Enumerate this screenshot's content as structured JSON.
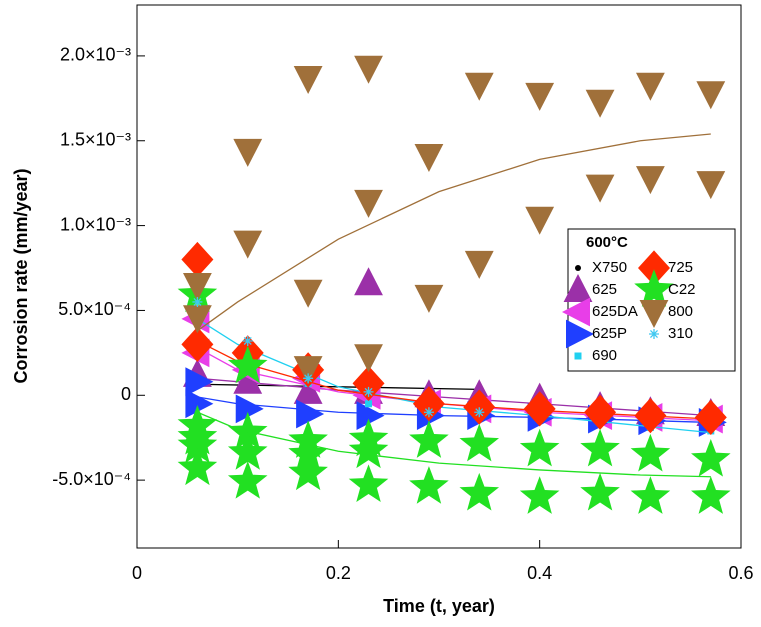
{
  "chart_data": {
    "type": "scatter",
    "xlabel": "Time (t, year)",
    "ylabel": "Corrosion rate (mm/year)",
    "xlim": [
      0,
      0.6
    ],
    "ylim": [
      -0.0009,
      0.0023
    ],
    "xticks": [
      0,
      0.2,
      0.4,
      0.6
    ],
    "yticks": [
      {
        "value": -0.0005,
        "label": "-5.0×10⁻⁴"
      },
      0,
      {
        "value": 0.0005,
        "label": "5.0×10⁻⁴"
      },
      {
        "value": 0.001,
        "label": "1.0×10⁻³"
      },
      {
        "value": 0.0015,
        "label": "1.5×10⁻³"
      },
      {
        "value": 0.002,
        "label": "2.0×10⁻³"
      }
    ],
    "legend_title": "600°C",
    "legend_position": "right",
    "series": [
      {
        "name": "X750",
        "color": "#000000",
        "marker": "circle",
        "x": [
          0.06,
          0.11,
          0.17,
          0.23,
          0.29,
          0.34
        ],
        "y": [
          7e-05,
          5e-05,
          4e-05,
          4e-05,
          4e-05,
          4e-05
        ],
        "fit": {
          "x": [
            0.06,
            0.2,
            0.34
          ],
          "y": [
            6.5e-05,
            5e-05,
            3.5e-05
          ]
        }
      },
      {
        "name": "625",
        "color": "#9b30a8",
        "marker": "triangle-up",
        "x": [
          0.06,
          0.11,
          0.17,
          0.23,
          0.23,
          0.29,
          0.34,
          0.4,
          0.46,
          0.51,
          0.57
        ],
        "y": [
          0.00012,
          8e-05,
          2e-05,
          0.00066,
          2e-05,
          0.0,
          0.0,
          -2e-05,
          -7e-05,
          -0.0001,
          -0.00011
        ],
        "fit": {
          "x": [
            0.06,
            0.2,
            0.3,
            0.4,
            0.57
          ],
          "y": [
            0.0001,
            3e-05,
            -1e-05,
            -5e-05,
            -0.00012
          ]
        }
      },
      {
        "name": "625DA",
        "color": "#e83ee8",
        "marker": "triangle-left",
        "x": [
          0.06,
          0.06,
          0.11,
          0.17,
          0.23,
          0.29,
          0.34,
          0.4,
          0.46,
          0.51,
          0.57
        ],
        "y": [
          0.00045,
          0.00025,
          0.00015,
          0.0001,
          0.0,
          -5e-05,
          -8e-05,
          -0.0001,
          -0.00012,
          -0.00013,
          -0.00014
        ],
        "fit": {
          "x": [
            0.06,
            0.1,
            0.2,
            0.3,
            0.4,
            0.57
          ],
          "y": [
            0.00028,
            0.00015,
            2e-05,
            -5e-05,
            -0.0001,
            -0.00015
          ]
        }
      },
      {
        "name": "625P",
        "color": "#1f3fff",
        "marker": "triangle-right",
        "x": [
          0.06,
          0.06,
          0.11,
          0.17,
          0.23,
          0.29,
          0.34,
          0.4,
          0.46,
          0.51,
          0.57
        ],
        "y": [
          8e-05,
          -5e-05,
          -8e-05,
          -0.00011,
          -0.00012,
          -0.00012,
          -0.00012,
          -0.00013,
          -0.00014,
          -0.00015,
          -0.00016
        ],
        "fit": {
          "x": [
            0.06,
            0.1,
            0.2,
            0.3,
            0.4,
            0.57
          ],
          "y": [
            -1e-05,
            -5e-05,
            -0.0001,
            -0.00012,
            -0.00013,
            -0.00016
          ]
        }
      },
      {
        "name": "690",
        "color": "#20d0f0",
        "marker": "square",
        "x": [
          0.06,
          0.11,
          0.17,
          0.23,
          0.29,
          0.34,
          0.4,
          0.46,
          0.51,
          0.57
        ],
        "y": [
          0.00048,
          0.00027,
          7e-05,
          -5e-05,
          -8e-05,
          -0.0001,
          -0.00013,
          -0.00015,
          -0.00019,
          -0.00021
        ],
        "fit": {
          "x": [
            0.06,
            0.1,
            0.2,
            0.3,
            0.4,
            0.57
          ],
          "y": [
            0.00045,
            0.0003,
            5e-05,
            -7e-05,
            -0.00012,
            -0.00022
          ]
        }
      },
      {
        "name": "725",
        "color": "#ff2a00",
        "marker": "diamond",
        "x": [
          0.06,
          0.06,
          0.11,
          0.17,
          0.23,
          0.29,
          0.34,
          0.4,
          0.46,
          0.51,
          0.57
        ],
        "y": [
          0.0008,
          0.0003,
          0.00025,
          0.00015,
          7e-05,
          -5e-05,
          -7e-05,
          -8e-05,
          -0.0001,
          -0.00012,
          -0.00013
        ],
        "fit": {
          "x": [
            0.06,
            0.1,
            0.2,
            0.3,
            0.4,
            0.57
          ],
          "y": [
            0.00032,
            0.0002,
            3e-05,
            -5e-05,
            -9e-05,
            -0.00014
          ]
        }
      },
      {
        "name": "C22",
        "color": "#22e022",
        "marker": "star",
        "x": [
          0.06,
          0.06,
          0.06,
          0.06,
          0.06,
          0.11,
          0.11,
          0.11,
          0.11,
          0.17,
          0.17,
          0.17,
          0.23,
          0.23,
          0.23,
          0.29,
          0.29,
          0.34,
          0.34,
          0.4,
          0.4,
          0.46,
          0.46,
          0.51,
          0.51,
          0.57,
          0.57
        ],
        "y": [
          0.00059,
          -0.00018,
          -0.00025,
          -0.0003,
          -0.00043,
          0.00017,
          -0.00022,
          -0.00034,
          -0.00051,
          -0.00027,
          -0.00035,
          -0.00046,
          -0.00026,
          -0.00033,
          -0.00053,
          -0.00027,
          -0.00054,
          -0.00029,
          -0.00058,
          -0.00032,
          -0.0006,
          -0.00032,
          -0.00058,
          -0.00035,
          -0.0006,
          -0.00038,
          -0.0006
        ],
        "fit": {
          "x": [
            0.06,
            0.1,
            0.2,
            0.3,
            0.4,
            0.5,
            0.57
          ],
          "y": [
            -0.0001,
            -0.0002,
            -0.00033,
            -0.0004,
            -0.00044,
            -0.00047,
            -0.00048
          ]
        }
      },
      {
        "name": "800",
        "color": "#a0703a",
        "marker": "triangle-down",
        "x": [
          0.06,
          0.06,
          0.11,
          0.11,
          0.17,
          0.17,
          0.17,
          0.23,
          0.23,
          0.23,
          0.29,
          0.29,
          0.34,
          0.34,
          0.4,
          0.4,
          0.46,
          0.46,
          0.51,
          0.51,
          0.57,
          0.57
        ],
        "y": [
          0.00065,
          0.00046,
          0.00144,
          0.0009,
          0.00187,
          0.00061,
          0.00016,
          0.00193,
          0.00114,
          0.00023,
          0.00141,
          0.00058,
          0.00183,
          0.00078,
          0.00177,
          0.00104,
          0.00173,
          0.00123,
          0.00183,
          0.00128,
          0.00178,
          0.00125
        ],
        "fit": {
          "x": [
            0.06,
            0.1,
            0.2,
            0.3,
            0.4,
            0.5,
            0.57
          ],
          "y": [
            0.00038,
            0.00055,
            0.00092,
            0.0012,
            0.00139,
            0.0015,
            0.00154
          ]
        }
      },
      {
        "name": "310",
        "color": "#40c8f0",
        "marker": "asterisk",
        "x": [
          0.06,
          0.11,
          0.17,
          0.23,
          0.29,
          0.34
        ],
        "y": [
          0.00055,
          0.00032,
          0.0001,
          2e-05,
          -0.0001,
          -0.0001
        ]
      }
    ]
  }
}
